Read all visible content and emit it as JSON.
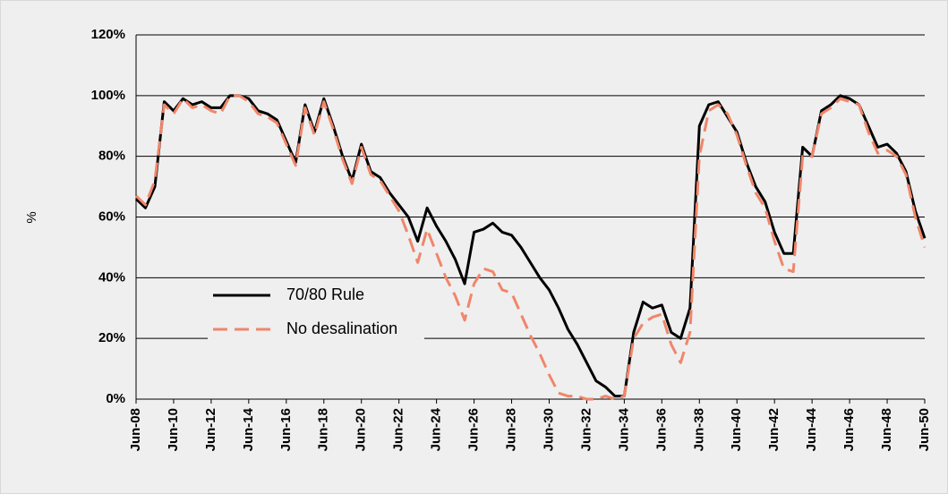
{
  "chart_data": {
    "type": "line",
    "y_label": "%",
    "categories": [
      "Jun-08",
      null,
      null,
      null,
      "Jun-10",
      null,
      null,
      null,
      "Jun-12",
      null,
      null,
      null,
      "Jun-14",
      null,
      null,
      null,
      "Jun-16",
      null,
      null,
      null,
      "Jun-18",
      null,
      null,
      null,
      "Jun-20",
      null,
      null,
      null,
      "Jun-22",
      null,
      null,
      null,
      "Jun-24",
      null,
      null,
      null,
      "Jun-26",
      null,
      null,
      null,
      "Jun-28",
      null,
      null,
      null,
      "Jun-30",
      null,
      null,
      null,
      "Jun-32",
      null,
      null,
      null,
      "Jun-34",
      null,
      null,
      null,
      "Jun-36",
      null,
      null,
      null,
      "Jun-38",
      null,
      null,
      null,
      "Jun-40",
      null,
      null,
      null,
      "Jun-42",
      null,
      null,
      null,
      "Jun-44",
      null,
      null,
      null,
      "Jun-46",
      null,
      null,
      null,
      "Jun-48",
      null,
      null,
      null,
      "Jun-50"
    ],
    "series": [
      {
        "name": "70/80 Rule",
        "color": "#000000",
        "dashed": false,
        "values": [
          66,
          63,
          70,
          98,
          95,
          99,
          97,
          98,
          96,
          96,
          100,
          100,
          99,
          95,
          94,
          92,
          85,
          78,
          97,
          88,
          99,
          90,
          80,
          72,
          84,
          75,
          73,
          68,
          64,
          60,
          52,
          63,
          57,
          52,
          46,
          38,
          55,
          56,
          58,
          55,
          54,
          50,
          45,
          40,
          36,
          30,
          23,
          18,
          12,
          6,
          4,
          1,
          1,
          22,
          32,
          30,
          31,
          22,
          20,
          30,
          90,
          97,
          98,
          93,
          88,
          78,
          70,
          65,
          55,
          48,
          48,
          83,
          80,
          95,
          97,
          100,
          99,
          97,
          90,
          83,
          84,
          81,
          75,
          62,
          53
        ]
      },
      {
        "name": "No desalination",
        "color": "#f0866a",
        "dashed": true,
        "values": [
          67,
          64,
          72,
          97,
          94,
          99,
          96,
          97,
          95,
          94,
          100,
          100,
          98,
          94,
          93,
          91,
          84,
          77,
          96,
          87,
          98,
          89,
          79,
          71,
          83,
          74,
          72,
          67,
          62,
          54,
          45,
          56,
          48,
          40,
          34,
          26,
          38,
          43,
          42,
          36,
          35,
          28,
          21,
          15,
          8,
          2,
          1,
          1,
          0,
          0,
          1,
          0,
          1,
          20,
          25,
          27,
          28,
          18,
          12,
          22,
          80,
          95,
          97,
          94,
          87,
          77,
          68,
          63,
          52,
          43,
          42,
          80,
          80,
          94,
          96,
          99,
          98,
          97,
          88,
          81,
          82,
          80,
          74,
          60,
          50
        ]
      }
    ],
    "ylim": [
      0,
      120
    ],
    "yticks": [
      {
        "value": 0,
        "label": "0%"
      },
      {
        "value": 20,
        "label": "20%"
      },
      {
        "value": 40,
        "label": "40%"
      },
      {
        "value": 60,
        "label": "60%"
      },
      {
        "value": 80,
        "label": "80%"
      },
      {
        "value": 100,
        "label": "100%"
      },
      {
        "value": 120,
        "label": "120%"
      }
    ],
    "grid": true,
    "legend": "lower-left"
  }
}
